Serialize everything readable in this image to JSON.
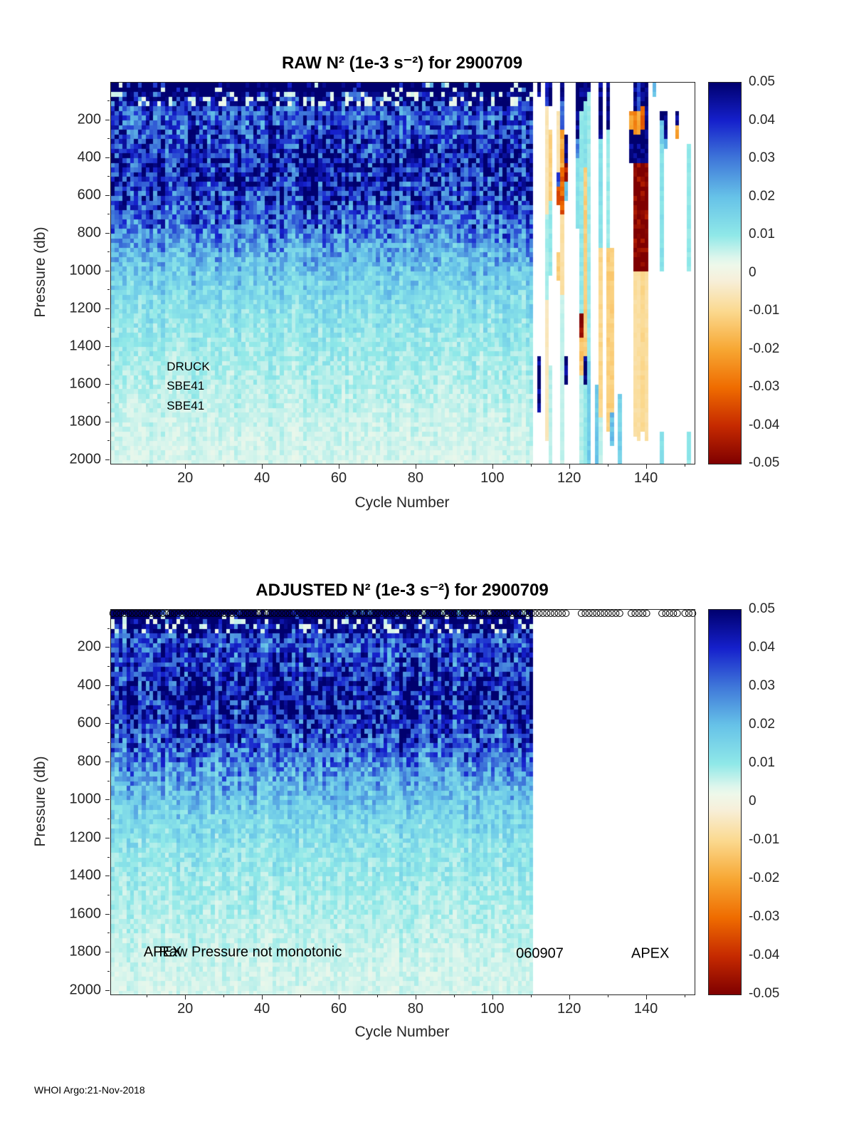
{
  "page": {
    "footer_credit": "WHOI Argo:21-Nov-2018"
  },
  "colormap": [
    {
      "value": -0.05,
      "color": "#7f0000"
    },
    {
      "value": -0.04,
      "color": "#c62a00"
    },
    {
      "value": -0.03,
      "color": "#ef6c00"
    },
    {
      "value": -0.02,
      "color": "#f7a733"
    },
    {
      "value": -0.01,
      "color": "#fbd98f"
    },
    {
      "value": -0.002,
      "color": "#f7efd9"
    },
    {
      "value": 0.002,
      "color": "#eef8ea"
    },
    {
      "value": 0.004,
      "color": "#def6ec"
    },
    {
      "value": 0.01,
      "color": "#8fe8e8"
    },
    {
      "value": 0.02,
      "color": "#66c2e8"
    },
    {
      "value": 0.03,
      "color": "#3f77d9"
    },
    {
      "value": 0.04,
      "color": "#1520cc"
    },
    {
      "value": 0.05,
      "color": "#00006e"
    }
  ],
  "chart_data": [
    {
      "id": "raw",
      "type": "heatmap",
      "title": "RAW N² (1e-3 s⁻²) for 2900709",
      "xlabel": "Cycle Number",
      "ylabel": "Pressure (db)",
      "xlim": [
        1,
        152
      ],
      "ylim": [
        0,
        2020
      ],
      "x_ticks": [
        20,
        40,
        60,
        80,
        100,
        120,
        140
      ],
      "x_tick_step": 20,
      "x_minor_step": 10,
      "y_ticks": [
        200,
        400,
        600,
        800,
        1000,
        1200,
        1400,
        1600,
        1800,
        2000
      ],
      "y_tick_step": 200,
      "y_minor_step": 100,
      "colorbar_ticks": [
        "0.05",
        "0.04",
        "0.03",
        "0.02",
        "0.01",
        "0",
        "-0.01",
        "-0.02",
        "-0.03",
        "-0.04",
        "-0.05"
      ],
      "annotations": [
        {
          "label": "DRUCK",
          "cycle": 15,
          "pressure": 1505
        },
        {
          "label": "SBE41",
          "cycle": 15,
          "pressure": 1610
        },
        {
          "label": "SBE41",
          "cycle": 15,
          "pressure": 1715
        }
      ],
      "heatmap": {
        "units": "1e-3 s^-2",
        "seed": 97,
        "pressure_bin_db": 25,
        "data_end_cycle": 110,
        "depth_profile": [
          [
            0,
            0.028
          ],
          [
            30,
            0.044
          ],
          [
            60,
            0.046
          ],
          [
            120,
            0.038
          ],
          [
            200,
            0.035
          ],
          [
            300,
            0.039
          ],
          [
            400,
            0.043
          ],
          [
            500,
            0.043
          ],
          [
            600,
            0.039
          ],
          [
            700,
            0.034
          ],
          [
            800,
            0.028
          ],
          [
            900,
            0.022
          ],
          [
            1000,
            0.018
          ],
          [
            1100,
            0.0145
          ],
          [
            1200,
            0.012
          ],
          [
            1300,
            0.0105
          ],
          [
            1400,
            0.0092
          ],
          [
            1500,
            0.0082
          ],
          [
            1600,
            0.0072
          ],
          [
            1700,
            0.0063
          ],
          [
            1800,
            0.0056
          ],
          [
            1900,
            0.005
          ],
          [
            2020,
            0.0045
          ]
        ],
        "special_columns": [
          {
            "cycle": 112,
            "segments": [
              [
                0,
                80,
                0.05
              ],
              [
                1450,
                1760,
                0.05
              ]
            ]
          },
          {
            "cycle": 114,
            "segments": [
              [
                0,
                130,
                0.042
              ],
              [
                130,
                700,
                -0.006
              ],
              [
                700,
                1150,
                0.008
              ],
              [
                1150,
                1900,
                -0.005
              ]
            ]
          },
          {
            "cycle": 115,
            "segments": [
              [
                0,
                120,
                0.05
              ],
              [
                260,
                620,
                -0.012
              ],
              [
                620,
                1020,
                0.01
              ],
              [
                1500,
                2020,
                0.007
              ]
            ]
          },
          {
            "cycle": 117,
            "segments": [
              [
                150,
                480,
                -0.006
              ],
              [
                480,
                560,
                0.035
              ],
              [
                560,
                640,
                -0.038
              ],
              [
                900,
                1060,
                -0.012
              ]
            ]
          },
          {
            "cycle": 118,
            "segments": [
              [
                0,
                90,
                0.05
              ],
              [
                90,
                260,
                0.03
              ],
              [
                260,
                460,
                -0.02
              ],
              [
                460,
                700,
                -0.032
              ],
              [
                700,
                1120,
                -0.008
              ],
              [
                1120,
                2020,
                0.006
              ]
            ]
          },
          {
            "cycle": 119,
            "segments": [
              [
                280,
                430,
                0.05
              ],
              [
                430,
                530,
                -0.045
              ],
              [
                530,
                620,
                0.02
              ],
              [
                1450,
                1600,
                0.05
              ]
            ]
          },
          {
            "cycle": 122,
            "segments": [
              [
                0,
                310,
                0.05
              ],
              [
                310,
                400,
                0.03
              ],
              [
                400,
                780,
                0.012
              ]
            ]
          },
          {
            "cycle": 123,
            "segments": [
              [
                0,
                140,
                0.05
              ],
              [
                140,
                1230,
                0.01
              ],
              [
                1230,
                1340,
                -0.05
              ],
              [
                1340,
                1560,
                -0.014
              ],
              [
                1560,
                2020,
                0.007
              ]
            ]
          },
          {
            "cycle": 124,
            "segments": [
              [
                0,
                90,
                0.05
              ],
              [
                90,
                460,
                0.012
              ],
              [
                460,
                1440,
                -0.012
              ],
              [
                1440,
                1610,
                0.05
              ],
              [
                1610,
                2020,
                0.01
              ]
            ]
          },
          {
            "cycle": 125,
            "segments": [
              [
                0,
                60,
                0.05
              ],
              [
                60,
                1480,
                0.009
              ],
              [
                1480,
                2020,
                0.018
              ]
            ]
          },
          {
            "cycle": 127,
            "segments": [
              [
                1600,
                2020,
                0.018
              ]
            ]
          },
          {
            "cycle": 128,
            "segments": [
              [
                0,
                290,
                0.05
              ],
              [
                290,
                880,
                0.012
              ],
              [
                880,
                1780,
                -0.01
              ],
              [
                1780,
                2020,
                0.006
              ]
            ]
          },
          {
            "cycle": 130,
            "segments": [
              [
                0,
                240,
                0.05
              ],
              [
                240,
                880,
                0.009
              ],
              [
                880,
                1860,
                -0.012
              ]
            ]
          },
          {
            "cycle": 131,
            "segments": [
              [
                880,
                1740,
                -0.012
              ],
              [
                1740,
                1930,
                0.02
              ]
            ]
          },
          {
            "cycle": 133,
            "segments": [
              [
                1650,
                2020,
                0.016
              ]
            ]
          },
          {
            "cycle": 136,
            "segments": [
              [
                140,
                260,
                -0.022
              ],
              [
                260,
                420,
                0.05
              ]
            ]
          },
          {
            "cycle": 137,
            "segments": [
              [
                0,
                150,
                0.05
              ],
              [
                150,
                280,
                -0.026
              ],
              [
                280,
                430,
                0.05
              ],
              [
                430,
                1000,
                -0.05
              ],
              [
                1000,
                1880,
                -0.008
              ]
            ]
          },
          {
            "cycle": 138,
            "segments": [
              [
                0,
                140,
                0.035
              ],
              [
                140,
                270,
                -0.02
              ],
              [
                270,
                430,
                0.05
              ],
              [
                430,
                1010,
                -0.05
              ],
              [
                1010,
                1900,
                -0.008
              ]
            ]
          },
          {
            "cycle": 139,
            "segments": [
              [
                0,
                130,
                0.05
              ],
              [
                130,
                260,
                -0.03
              ],
              [
                260,
                430,
                0.05
              ],
              [
                430,
                1000,
                -0.05
              ],
              [
                1000,
                1860,
                -0.01
              ]
            ]
          },
          {
            "cycle": 140,
            "segments": [
              [
                0,
                430,
                0.05
              ],
              [
                430,
                1000,
                -0.05
              ],
              [
                1000,
                1900,
                -0.008
              ]
            ]
          },
          {
            "cycle": 142,
            "segments": [
              [
                0,
                70,
                0.02
              ]
            ]
          },
          {
            "cycle": 144,
            "segments": [
              [
                140,
                210,
                0.05
              ],
              [
                210,
                330,
                0.018
              ],
              [
                330,
                1000,
                0.012
              ],
              [
                1840,
                2020,
                0.012
              ]
            ]
          },
          {
            "cycle": 145,
            "segments": [
              [
                140,
                300,
                0.05
              ],
              [
                300,
                340,
                0.02
              ]
            ]
          },
          {
            "cycle": 148,
            "segments": [
              [
                150,
                230,
                0.05
              ],
              [
                230,
                310,
                -0.02
              ]
            ]
          },
          {
            "cycle": 151,
            "segments": [
              [
                320,
                1000,
                0.01
              ],
              [
                1850,
                2020,
                0.01
              ]
            ]
          }
        ]
      }
    },
    {
      "id": "adjusted",
      "type": "heatmap",
      "title": "ADJUSTED N² (1e-3 s⁻²) for 2900709",
      "xlabel": "Cycle Number",
      "ylabel": "Pressure (db)",
      "xlim": [
        1,
        152
      ],
      "ylim": [
        0,
        2020
      ],
      "x_ticks": [
        20,
        40,
        60,
        80,
        100,
        120,
        140
      ],
      "x_tick_step": 20,
      "x_minor_step": 10,
      "y_ticks": [
        200,
        400,
        600,
        800,
        1000,
        1200,
        1400,
        1600,
        1800,
        2000
      ],
      "y_tick_step": 200,
      "y_minor_step": 100,
      "colorbar_ticks": [
        "0.05",
        "0.04",
        "0.03",
        "0.02",
        "0.01",
        "0",
        "-0.01",
        "-0.02",
        "-0.03",
        "-0.04",
        "-0.05"
      ],
      "annotations": [
        {
          "label": "APEX",
          "cycle": 9,
          "pressure": 1800
        },
        {
          "label": "Raw Pressure not monotonic",
          "cycle": 13,
          "pressure": 1800
        },
        {
          "label": "060907",
          "cycle": 106,
          "pressure": 1805
        },
        {
          "label": "APEX",
          "cycle": 136,
          "pressure": 1805
        }
      ],
      "heatmap": {
        "units": "1e-3 s^-2",
        "seed": 709,
        "pressure_bin_db": 25,
        "data_end_cycle": 110,
        "depth_profile": [
          [
            0,
            0.028
          ],
          [
            30,
            0.044
          ],
          [
            60,
            0.046
          ],
          [
            120,
            0.038
          ],
          [
            200,
            0.035
          ],
          [
            300,
            0.039
          ],
          [
            400,
            0.043
          ],
          [
            500,
            0.043
          ],
          [
            600,
            0.039
          ],
          [
            700,
            0.034
          ],
          [
            800,
            0.028
          ],
          [
            900,
            0.022
          ],
          [
            1000,
            0.018
          ],
          [
            1100,
            0.0145
          ],
          [
            1200,
            0.012
          ],
          [
            1300,
            0.0105
          ],
          [
            1400,
            0.0092
          ],
          [
            1500,
            0.0082
          ],
          [
            1600,
            0.0072
          ],
          [
            1700,
            0.0063
          ],
          [
            1800,
            0.0056
          ],
          [
            1900,
            0.005
          ],
          [
            2020,
            0.0045
          ]
        ],
        "top_markers": {
          "symbol": "circle",
          "runs": [
            [
              1,
              119
            ],
            [
              123,
              133
            ],
            [
              136,
              140
            ],
            [
              144,
              148
            ],
            [
              150,
              152
            ]
          ]
        }
      }
    }
  ]
}
